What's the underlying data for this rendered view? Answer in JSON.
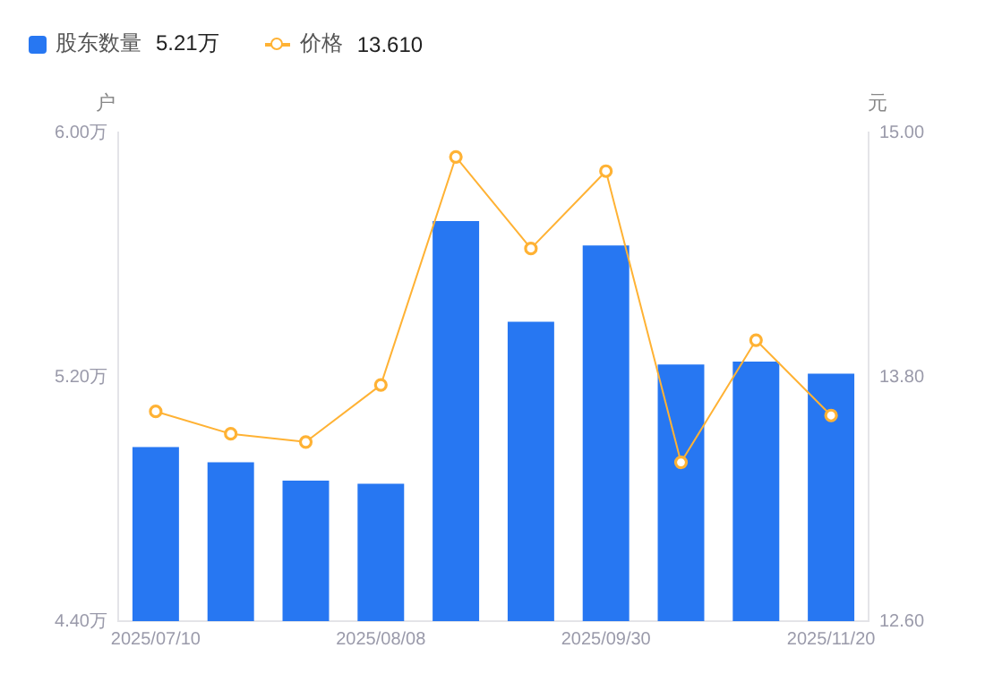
{
  "chart_data": {
    "type": "bar",
    "categories": [
      "2025/07/10",
      null,
      null,
      "2025/08/08",
      null,
      null,
      "2025/09/30",
      null,
      null,
      "2025/11/20"
    ],
    "series": [
      {
        "name": "股东数量",
        "color": "#2777f2",
        "values": [
          4.97,
          4.92,
          4.86,
          4.85,
          5.71,
          5.38,
          5.63,
          5.24,
          5.25,
          5.21
        ]
      },
      {
        "name": "价格",
        "type": "line",
        "axis": "y2",
        "color": "#ffb234",
        "values": [
          13.63,
          13.52,
          13.48,
          13.76,
          14.88,
          14.43,
          14.81,
          13.38,
          13.98,
          13.61
        ]
      }
    ],
    "ylabel": "户",
    "y2label": "元",
    "annotations": [
      "5.21万",
      "13.610"
    ],
    "ylim": [
      4.4,
      6.0
    ],
    "yticks": [
      {
        "value": 4.4,
        "label": "4.40万"
      },
      {
        "value": 5.2,
        "label": "5.20万"
      },
      {
        "value": 6.0,
        "label": "6.00万"
      }
    ],
    "y2lim": [
      12.6,
      15.0
    ],
    "y2ticks": [
      {
        "value": 12.6,
        "label": "12.60"
      },
      {
        "value": 13.8,
        "label": "13.80"
      },
      {
        "value": 15.0,
        "label": "15.00"
      }
    ],
    "grid": false,
    "legend": "top left",
    "marker": "circle",
    "line_style": "solid"
  }
}
